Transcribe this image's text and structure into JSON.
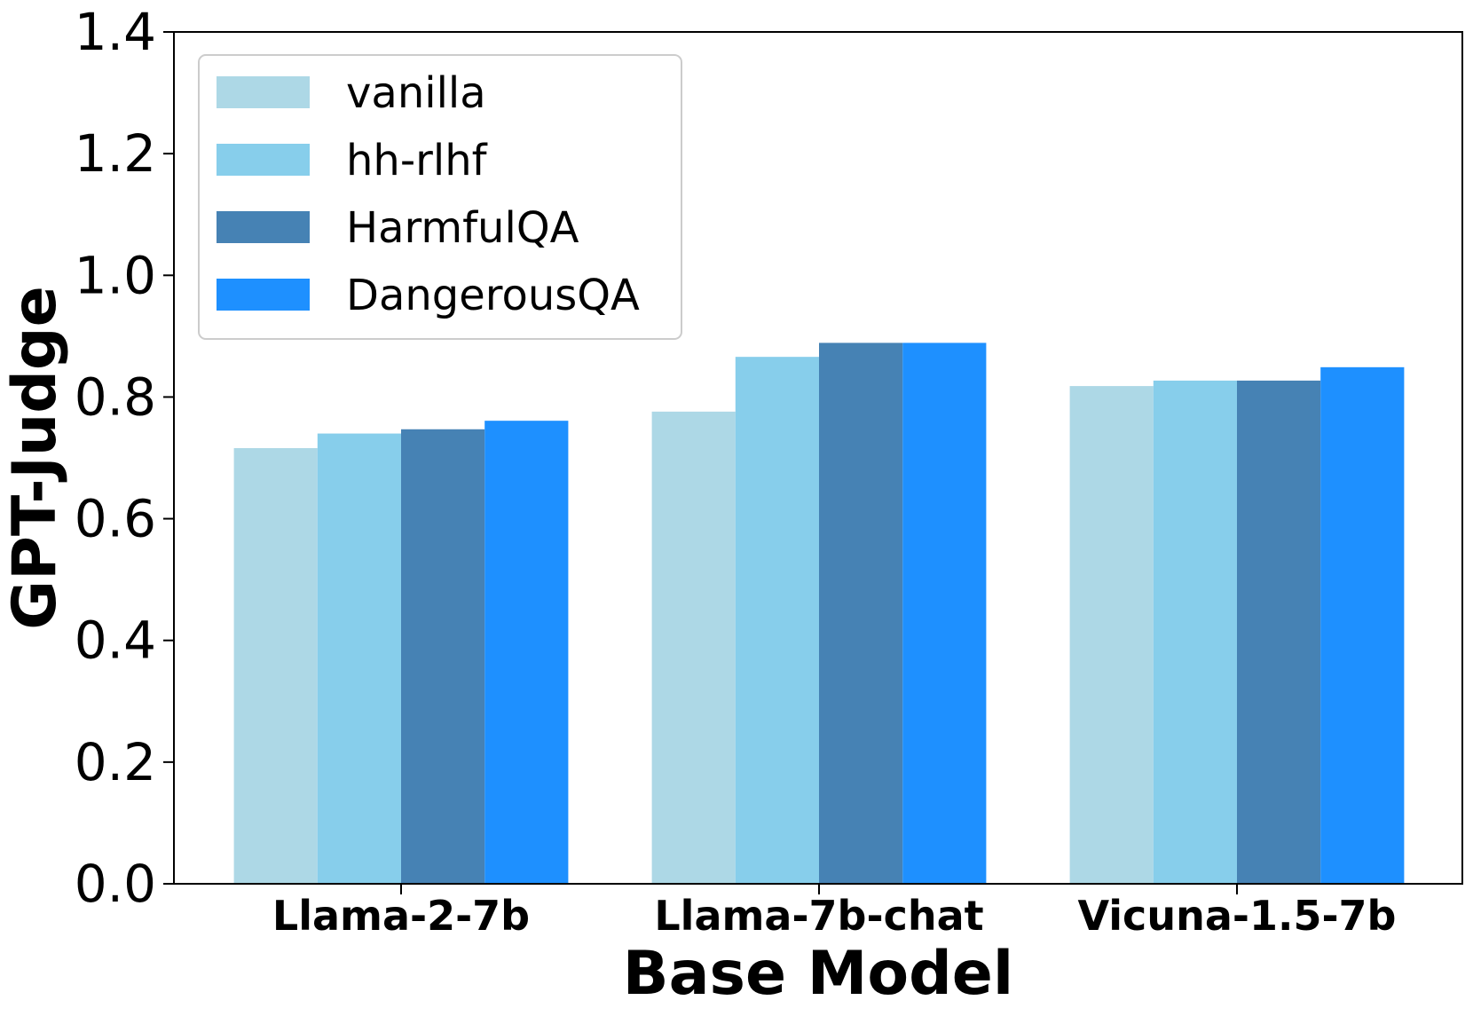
{
  "chart_data": {
    "type": "bar",
    "title": "",
    "xlabel": "Base Model",
    "ylabel": "GPT-Judge",
    "categories": [
      "Llama-2-7b",
      "Llama-7b-chat",
      "Vicuna-1.5-7b"
    ],
    "series": [
      {
        "name": "vanilla",
        "color": "#ADD8E6",
        "values": [
          0.716,
          0.776,
          0.818
        ]
      },
      {
        "name": "hh-rlhf",
        "color": "#87CEEB",
        "values": [
          0.74,
          0.866,
          0.827
        ]
      },
      {
        "name": "HarmfulQA",
        "color": "#4682B4",
        "values": [
          0.747,
          0.889,
          0.827
        ]
      },
      {
        "name": "DangerousQA",
        "color": "#1E90FF",
        "values": [
          0.761,
          0.889,
          0.849
        ]
      }
    ],
    "ylim": [
      0,
      1.4
    ],
    "yticks": [
      "0.0",
      "0.2",
      "0.4",
      "0.6",
      "0.8",
      "1.0",
      "1.2",
      "1.4"
    ],
    "grid": false,
    "legend_position": "top-left"
  }
}
